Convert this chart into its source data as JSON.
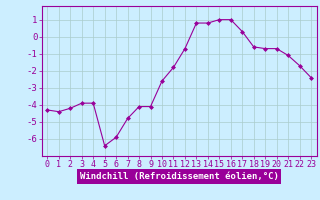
{
  "x": [
    0,
    1,
    2,
    3,
    4,
    5,
    6,
    7,
    8,
    9,
    10,
    11,
    12,
    13,
    14,
    15,
    16,
    17,
    18,
    19,
    20,
    21,
    22,
    23
  ],
  "y": [
    -4.3,
    -4.4,
    -4.2,
    -3.9,
    -3.9,
    -6.4,
    -5.9,
    -4.8,
    -4.1,
    -4.1,
    -2.6,
    -1.8,
    -0.7,
    0.8,
    0.8,
    1.0,
    1.0,
    0.3,
    -0.6,
    -0.7,
    -0.7,
    -1.1,
    -1.7,
    -2.4
  ],
  "line_color": "#990099",
  "marker": "D",
  "marker_size": 2,
  "bg_color": "#cceeff",
  "grid_color": "#aacccc",
  "xlabel": "Windchill (Refroidissement éolien,°C)",
  "xlabel_color": "#ffffff",
  "xlabel_bg": "#990099",
  "ylabel_ticks": [
    1,
    0,
    -1,
    -2,
    -3,
    -4,
    -5,
    -6
  ],
  "xtick_labels": [
    "0",
    "1",
    "2",
    "3",
    "4",
    "5",
    "6",
    "7",
    "8",
    "9",
    "10",
    "11",
    "12",
    "13",
    "14",
    "15",
    "16",
    "17",
    "18",
    "19",
    "20",
    "21",
    "22",
    "23"
  ],
  "ylim": [
    -7.0,
    1.8
  ],
  "xlim": [
    -0.5,
    23.5
  ],
  "tick_color": "#990099",
  "axes_color": "#990099",
  "font_size": 6.5
}
